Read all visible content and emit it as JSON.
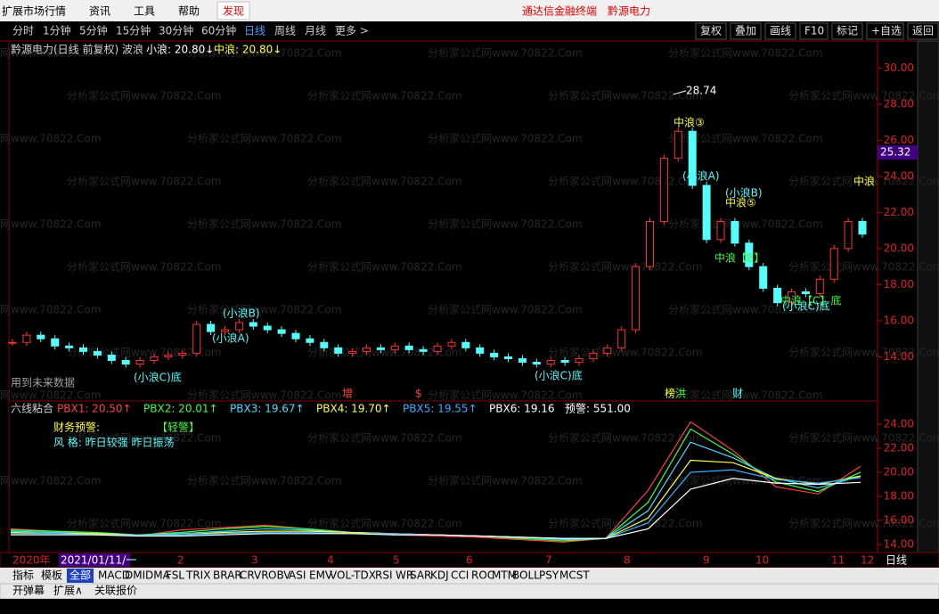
{
  "menu": {
    "items": [
      "扩展市场行情",
      "资讯",
      "工具",
      "帮助",
      "发现"
    ],
    "brand": "通达信金融终端",
    "stock": "黔源电力"
  },
  "toolbar": {
    "periods": [
      "分时",
      "1分钟",
      "5分钟",
      "15分钟",
      "30分钟",
      "60分钟",
      "日线",
      "周线",
      "月线",
      "更多 >"
    ],
    "actions": [
      "复权",
      "叠加",
      "画线",
      "F10",
      "标记",
      "+自选",
      "返回"
    ]
  },
  "main_chart": {
    "title": "黔源电力(日线 前复权) 波浪",
    "legend": [
      "小浪: 20.80↓",
      "中浪: 20.80↓"
    ],
    "ylim": [
      11.8,
      31.5
    ],
    "yticks": [
      {
        "value": 14,
        "label": "14.00"
      },
      {
        "value": 16,
        "label": "16.00"
      },
      {
        "value": 18,
        "label": "18.00"
      },
      {
        "value": 20,
        "label": "20.00"
      },
      {
        "value": 22,
        "label": "22.00"
      },
      {
        "value": 24,
        "label": "24.00"
      },
      {
        "value": 26,
        "label": "26.00"
      },
      {
        "value": 28,
        "label": "28.00"
      },
      {
        "value": 30,
        "label": "30.00"
      }
    ],
    "current_price": {
      "value": 25.32,
      "label": "25.32"
    },
    "closes": [
      14.8,
      15.2,
      15.0,
      14.6,
      14.5,
      14.3,
      14.1,
      13.8,
      13.6,
      13.8,
      14.0,
      14.1,
      14.2,
      15.8,
      15.4,
      15.5,
      15.9,
      15.7,
      15.5,
      15.3,
      15.0,
      14.8,
      14.5,
      14.2,
      14.3,
      14.5,
      14.4,
      14.6,
      14.4,
      14.3,
      14.6,
      14.8,
      14.5,
      14.2,
      14.0,
      13.9,
      13.7,
      13.6,
      13.8,
      13.7,
      13.9,
      14.2,
      14.5,
      15.5,
      19.0,
      21.5,
      25.0,
      26.5,
      23.5,
      20.5,
      21.5,
      20.3,
      19.0,
      17.8,
      17.0,
      17.6,
      17.5,
      18.3,
      20.0,
      21.5,
      20.8
    ],
    "peak": 28.74,
    "annotations": [
      "(小浪C)底",
      "(小浪B)",
      "(小浪A)",
      "(小浪C)底",
      "中浪③",
      "(小浪A)",
      "(小浪B)",
      "中浪⑤",
      "中浪【B】",
      "中浪【C】底",
      "(小浪C)底",
      "中浪"
    ],
    "note": "用到未来数据",
    "signals": [
      "增",
      "$",
      "榜",
      "洪",
      "财"
    ]
  },
  "indicator": {
    "name": "六线粘合",
    "alert": "预警: 551.00",
    "ylim": [
      13.48,
      24.74
    ],
    "yticks": [
      {
        "value": 14,
        "label": "14.00"
      },
      {
        "value": 16,
        "label": "16.00"
      },
      {
        "value": 18,
        "label": "18.00"
      },
      {
        "value": 20,
        "label": "20.00"
      },
      {
        "value": 22,
        "label": "22.00"
      },
      {
        "value": 24,
        "label": "24.00"
      }
    ],
    "notes": [
      "财务预警:",
      "【轻警】",
      "风  格: 昨日较强 昨日振荡"
    ],
    "series": [
      {
        "name": "PBX1",
        "label": "PBX1: 20.50↑",
        "color": "#ff4040",
        "values": [
          15.3,
          15.1,
          14.9,
          14.7,
          15.2,
          15.4,
          15.6,
          15.3,
          15.0,
          14.8,
          14.7,
          14.6,
          14.4,
          14.2,
          14.5,
          18.5,
          24.2,
          21.8,
          18.8,
          18.2,
          20.5
        ]
      },
      {
        "name": "PBX2",
        "label": "PBX2: 20.01↑",
        "color": "#40ff40",
        "values": [
          15.2,
          15.1,
          15.0,
          14.8,
          15.0,
          15.3,
          15.5,
          15.3,
          15.0,
          14.9,
          14.8,
          14.7,
          14.5,
          14.3,
          14.5,
          17.5,
          23.6,
          21.5,
          19.2,
          18.4,
          20.01
        ]
      },
      {
        "name": "PBX3",
        "label": "PBX3: 19.67↑",
        "color": "#40e0ff",
        "values": [
          15.1,
          15.0,
          14.9,
          14.8,
          14.9,
          15.1,
          15.3,
          15.2,
          15.0,
          14.9,
          14.8,
          14.7,
          14.6,
          14.4,
          14.5,
          16.8,
          22.5,
          21.2,
          19.5,
          18.7,
          19.67
        ]
      },
      {
        "name": "PBX4",
        "label": "PBX4: 19.70↑",
        "color": "#ffff40",
        "values": [
          15.0,
          14.9,
          14.9,
          14.8,
          14.8,
          15.0,
          15.1,
          15.1,
          15.0,
          14.9,
          14.8,
          14.7,
          14.6,
          14.5,
          14.5,
          16.2,
          21.0,
          20.8,
          19.5,
          19.0,
          19.7
        ]
      },
      {
        "name": "PBX5",
        "label": "PBX5: 19.55↑",
        "color": "#30b0ff",
        "values": [
          14.9,
          14.9,
          14.8,
          14.8,
          14.8,
          14.9,
          15.0,
          15.0,
          14.9,
          14.9,
          14.8,
          14.7,
          14.6,
          14.5,
          14.5,
          15.8,
          20.0,
          20.2,
          19.4,
          19.1,
          19.55
        ]
      },
      {
        "name": "PBX6",
        "label": "PBX6: 19.16",
        "color": "#ffffff",
        "values": [
          14.8,
          14.8,
          14.8,
          14.7,
          14.7,
          14.8,
          14.9,
          14.9,
          14.9,
          14.8,
          14.8,
          14.7,
          14.6,
          14.5,
          14.5,
          15.3,
          18.6,
          19.5,
          19.1,
          19.0,
          19.16
        ]
      }
    ]
  },
  "date_bar": {
    "year": "2020年",
    "cursor": "2021/01/11/一",
    "months": [
      "2",
      "3",
      "4",
      "5",
      "6",
      "7",
      "8",
      "9",
      "10",
      "11",
      "12"
    ],
    "period": "日线"
  },
  "tabs": [
    "指标",
    "模板",
    "全部",
    "MACD",
    "DMI",
    "DMA",
    "FSL",
    "TRIX",
    "BRAR",
    "CR",
    "VR",
    "OBV",
    "ASI",
    "EMV",
    "VOL-TDX",
    "RSI",
    "WR",
    "SAR",
    "KDJ",
    "CCI",
    "ROC",
    "MTM",
    "BOLL",
    "PSY",
    "MCST"
  ],
  "bottom": [
    "开弹幕",
    "扩展∧",
    "关联报价"
  ],
  "watermark": "分析家公式网www.70822.Com"
}
